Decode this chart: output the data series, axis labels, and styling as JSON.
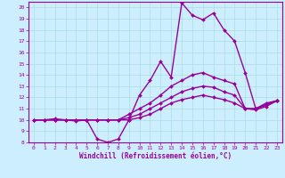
{
  "xlabel": "Windchill (Refroidissement éolien,°C)",
  "background_color": "#cceeff",
  "line_color": "#990099",
  "xlim": [
    -0.5,
    23.5
  ],
  "ylim": [
    8,
    20.5
  ],
  "xticks": [
    0,
    1,
    2,
    3,
    4,
    5,
    6,
    7,
    8,
    9,
    10,
    11,
    12,
    13,
    14,
    15,
    16,
    17,
    18,
    19,
    20,
    21,
    22,
    23
  ],
  "yticks": [
    8,
    9,
    10,
    11,
    12,
    13,
    14,
    15,
    16,
    17,
    18,
    19,
    20
  ],
  "series": [
    [
      10.0,
      10.0,
      10.0,
      10.0,
      9.9,
      10.0,
      8.3,
      8.0,
      8.3,
      10.0,
      12.2,
      13.5,
      15.2,
      13.8,
      20.4,
      19.3,
      18.9,
      19.5,
      18.0,
      17.0,
      14.2,
      11.0,
      11.5,
      11.7
    ],
    [
      10.0,
      10.0,
      10.1,
      10.0,
      10.0,
      10.0,
      10.0,
      10.0,
      10.0,
      10.5,
      11.0,
      11.5,
      12.2,
      13.0,
      13.5,
      14.0,
      14.2,
      13.8,
      13.5,
      13.2,
      11.0,
      11.0,
      11.4,
      11.7
    ],
    [
      10.0,
      10.0,
      10.0,
      10.0,
      10.0,
      10.0,
      10.0,
      10.0,
      10.0,
      10.2,
      10.5,
      11.0,
      11.5,
      12.0,
      12.5,
      12.8,
      13.0,
      12.9,
      12.5,
      12.2,
      11.0,
      11.0,
      11.3,
      11.7
    ],
    [
      10.0,
      10.0,
      10.0,
      10.0,
      10.0,
      10.0,
      10.0,
      10.0,
      10.0,
      10.0,
      10.2,
      10.5,
      11.0,
      11.5,
      11.8,
      12.0,
      12.2,
      12.0,
      11.8,
      11.5,
      11.0,
      10.9,
      11.2,
      11.7
    ]
  ],
  "grid_color": "#aadddd",
  "tick_fontsize": 4.5,
  "xlabel_fontsize": 5.5
}
